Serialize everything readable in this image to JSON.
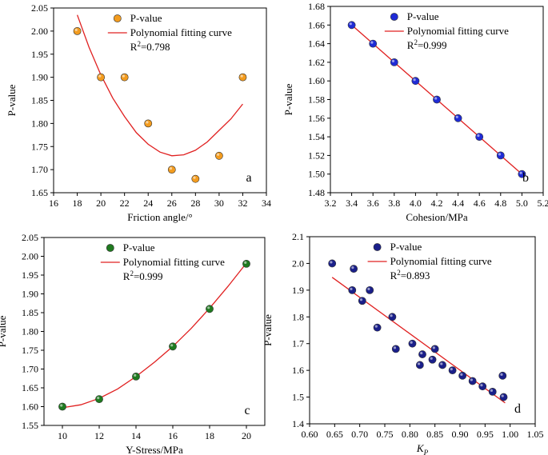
{
  "chart_data": [
    {
      "type": "scatter",
      "panel_label": "a",
      "xlabel": "Friction angle/°",
      "ylabel": "P-value",
      "xlim": [
        16,
        34
      ],
      "ylim": [
        1.65,
        2.05
      ],
      "xticks": [
        16,
        18,
        20,
        22,
        24,
        26,
        28,
        30,
        32,
        34
      ],
      "yticks": [
        1.65,
        1.7,
        1.75,
        1.8,
        1.85,
        1.9,
        1.95,
        2.0,
        2.05
      ],
      "xtick_decimals": 0,
      "ytick_decimals": 2,
      "marker_color": "#f39c1f",
      "fit_color": "#e02020",
      "series": [
        {
          "name": "P-value",
          "x": [
            18,
            20,
            22,
            24,
            26,
            28,
            30,
            32
          ],
          "y": [
            2.0,
            1.9,
            1.9,
            1.8,
            1.7,
            1.68,
            1.73,
            1.9
          ]
        }
      ],
      "fit": {
        "name": "Polynomial fitting curve",
        "r2_label": "R",
        "r2_sup": "2",
        "r2_value": "=0.798",
        "x": [
          18,
          19,
          20,
          21,
          22,
          23,
          24,
          25,
          26,
          27,
          28,
          29,
          30,
          31,
          32
        ],
        "y": [
          2.035,
          1.965,
          1.905,
          1.855,
          1.815,
          1.78,
          1.755,
          1.738,
          1.73,
          1.732,
          1.742,
          1.76,
          1.785,
          1.81,
          1.842
        ]
      },
      "legend_position": "top"
    },
    {
      "type": "scatter",
      "panel_label": "b",
      "xlabel": "Cohesion/MPa",
      "ylabel": "P-value",
      "xlim": [
        3.2,
        5.2
      ],
      "ylim": [
        1.48,
        1.68
      ],
      "xticks": [
        3.2,
        3.4,
        3.6,
        3.8,
        4.0,
        4.2,
        4.4,
        4.6,
        4.8,
        5.0,
        5.2
      ],
      "yticks": [
        1.48,
        1.5,
        1.52,
        1.54,
        1.56,
        1.58,
        1.6,
        1.62,
        1.64,
        1.66,
        1.68
      ],
      "xtick_decimals": 1,
      "ytick_decimals": 2,
      "marker_color": "#1f2bd6",
      "fit_color": "#e02020",
      "series": [
        {
          "name": "P-value",
          "x": [
            3.4,
            3.6,
            3.8,
            4.0,
            4.2,
            4.4,
            4.6,
            4.8,
            5.0
          ],
          "y": [
            1.66,
            1.64,
            1.62,
            1.6,
            1.58,
            1.56,
            1.54,
            1.52,
            1.5
          ]
        }
      ],
      "fit": {
        "name": "Polynomial fitting curve",
        "r2_label": "R",
        "r2_sup": "2",
        "r2_value": "=0.999",
        "x": [
          3.4,
          5.0
        ],
        "y": [
          1.66,
          1.5
        ]
      },
      "legend_position": "top"
    },
    {
      "type": "scatter",
      "panel_label": "c",
      "xlabel": "Y-Stress/MPa",
      "ylabel": "P-value",
      "xlim": [
        9,
        21
      ],
      "ylim": [
        1.55,
        2.05
      ],
      "xticks": [
        10,
        12,
        14,
        16,
        18,
        20
      ],
      "yticks": [
        1.55,
        1.6,
        1.65,
        1.7,
        1.75,
        1.8,
        1.85,
        1.9,
        1.95,
        2.0,
        2.05
      ],
      "xtick_decimals": 0,
      "ytick_decimals": 2,
      "marker_color": "#1f7a1f",
      "fit_color": "#e02020",
      "series": [
        {
          "name": "P-value",
          "x": [
            10,
            12,
            14,
            16,
            18,
            20
          ],
          "y": [
            1.6,
            1.62,
            1.68,
            1.76,
            1.86,
            1.98
          ]
        }
      ],
      "fit": {
        "name": "Polynomial fitting curve",
        "r2_label": "R",
        "r2_sup": "2",
        "r2_value": "=0.999",
        "x": [
          10,
          11,
          12,
          13,
          14,
          15,
          16,
          17,
          18,
          19,
          20
        ],
        "y": [
          1.597,
          1.605,
          1.622,
          1.647,
          1.68,
          1.718,
          1.76,
          1.808,
          1.862,
          1.92,
          1.982
        ]
      },
      "legend_position": "top"
    },
    {
      "type": "scatter",
      "panel_label": "d",
      "xlabel": "K",
      "xlabel_sub": "P",
      "ylabel": "P-value",
      "xlim": [
        0.6,
        1.05
      ],
      "ylim": [
        1.4,
        2.1
      ],
      "xticks": [
        0.6,
        0.65,
        0.7,
        0.75,
        0.8,
        0.85,
        0.9,
        0.95,
        1.0,
        1.05
      ],
      "yticks": [
        1.4,
        1.5,
        1.6,
        1.7,
        1.8,
        1.9,
        2.0,
        2.1
      ],
      "xtick_decimals": 2,
      "ytick_decimals": 1,
      "marker_color": "#1a1f8a",
      "fit_color": "#e02020",
      "series": [
        {
          "name": "P-value",
          "x": [
            0.645,
            0.685,
            0.688,
            0.705,
            0.72,
            0.735,
            0.765,
            0.772,
            0.805,
            0.82,
            0.825,
            0.845,
            0.85,
            0.865,
            0.885,
            0.905,
            0.925,
            0.945,
            0.965,
            0.985,
            0.987
          ],
          "y": [
            2.0,
            1.9,
            1.98,
            1.86,
            1.9,
            1.76,
            1.8,
            1.68,
            1.7,
            1.62,
            1.66,
            1.64,
            1.68,
            1.62,
            1.6,
            1.58,
            1.56,
            1.54,
            1.52,
            1.58,
            1.5
          ]
        }
      ],
      "fit": {
        "name": "Polynomial fitting curve",
        "r2_label": "R",
        "r2_sup": "2",
        "r2_value": "=0.893",
        "x": [
          0.645,
          0.99
        ],
        "y": [
          1.948,
          1.478
        ]
      },
      "legend_position": "top"
    }
  ]
}
